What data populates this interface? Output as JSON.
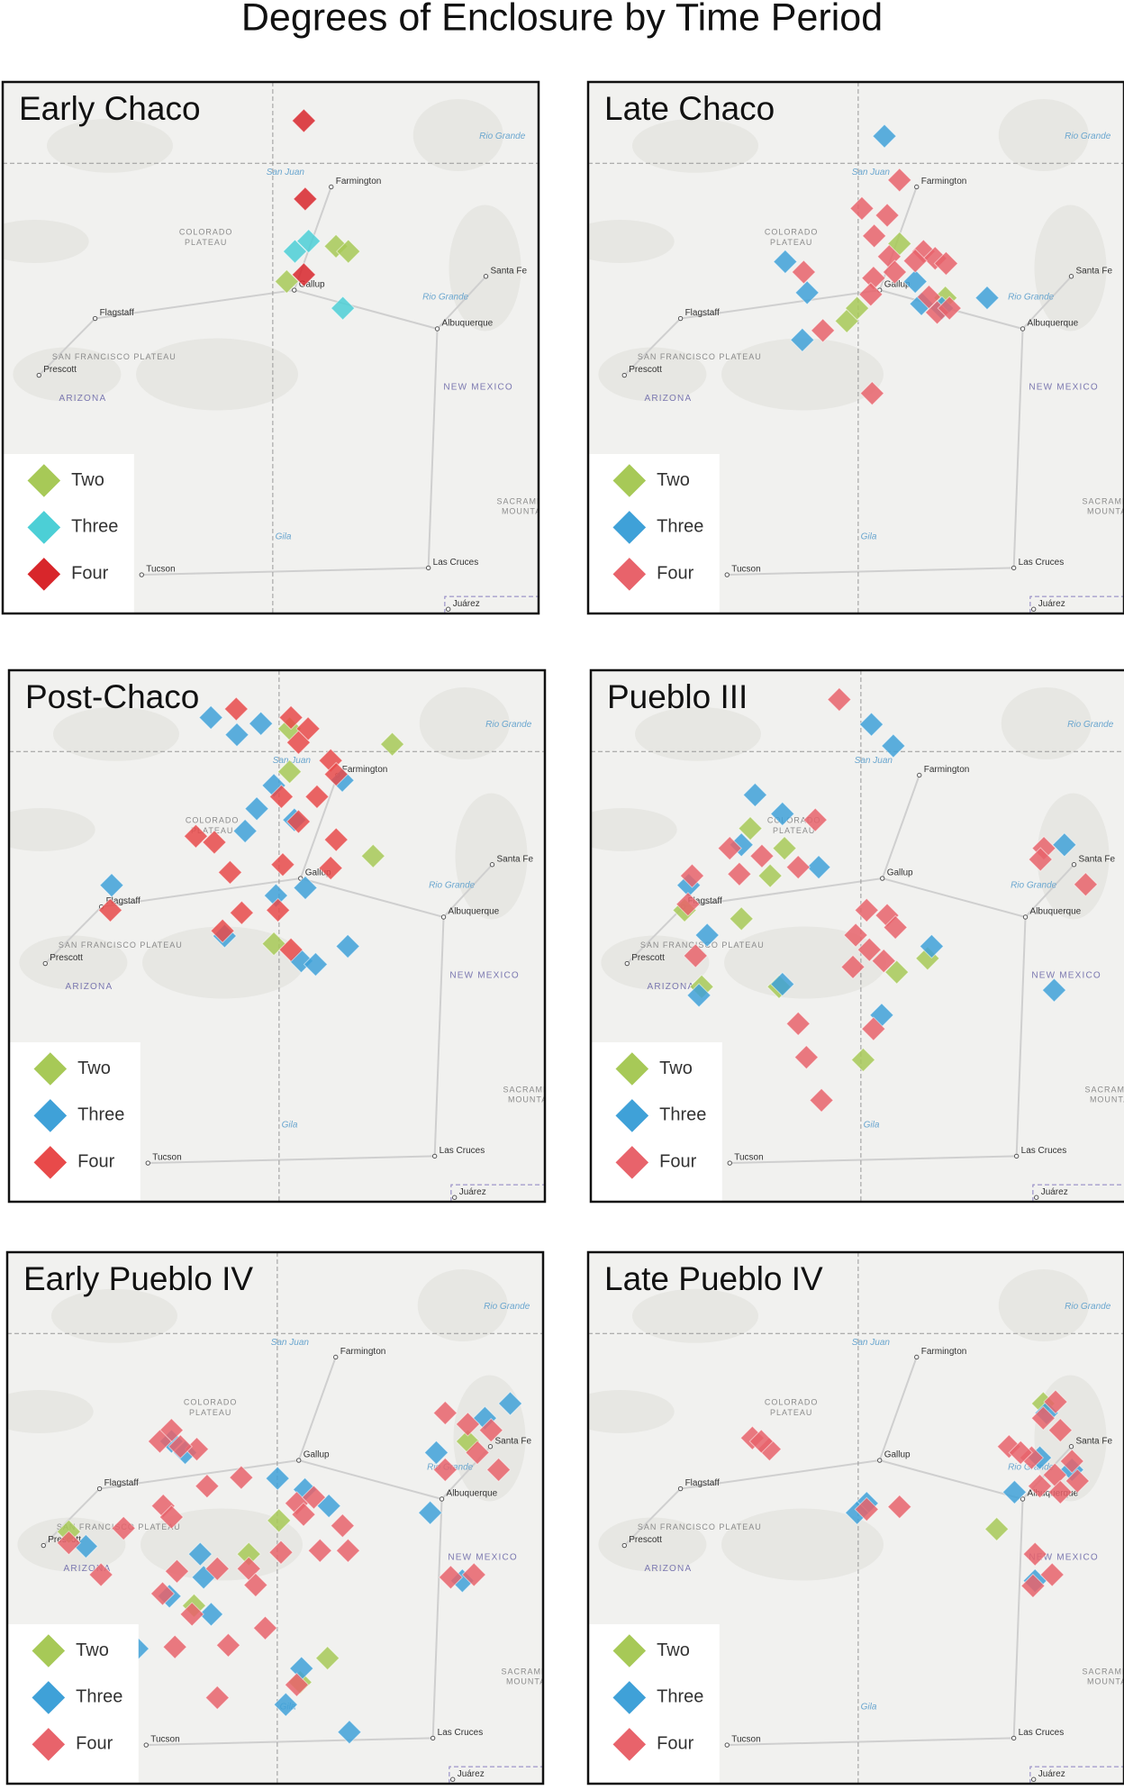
{
  "title": "Degrees of Enclosure by Time Period",
  "basemap": {
    "cities": [
      {
        "name": "Farmington",
        "lon": -108.2,
        "lat": 36.73
      },
      {
        "name": "Gallup",
        "lon": -108.74,
        "lat": 35.53
      },
      {
        "name": "Albuquerque",
        "lon": -106.65,
        "lat": 35.08
      },
      {
        "name": "Santa Fe",
        "lon": -105.94,
        "lat": 35.69
      },
      {
        "name": "Flagstaff",
        "lon": -111.65,
        "lat": 35.2
      },
      {
        "name": "Prescott",
        "lon": -112.47,
        "lat": 34.54
      },
      {
        "name": "Tucson",
        "lon": -110.97,
        "lat": 32.22
      },
      {
        "name": "Las Cruces",
        "lon": -106.78,
        "lat": 32.3
      },
      {
        "name": "Juárez",
        "lon": -106.49,
        "lat": 31.82
      }
    ],
    "regions": [
      {
        "text": "COLORADO",
        "lon": -110.03,
        "lat": 36.2
      },
      {
        "text": "PLATEAU",
        "lon": -110.03,
        "lat": 36.08
      },
      {
        "text": "SAN FRANCISCO PLATEAU",
        "lon": -111.37,
        "lat": 34.75
      },
      {
        "text": "SACRAMENTO",
        "lon": -105.3,
        "lat": 33.07
      },
      {
        "text": "MOUNTAINS",
        "lon": -105.3,
        "lat": 32.95
      }
    ],
    "states": [
      {
        "text": "ARIZONA",
        "lon": -111.83,
        "lat": 34.27
      },
      {
        "text": "NEW MEXICO",
        "lon": -106.05,
        "lat": 34.4
      }
    ],
    "rivers": [
      {
        "text": "San Juan",
        "lon": -108.87,
        "lat": 36.9
      },
      {
        "text": "Rio Grande",
        "lon": -106.53,
        "lat": 35.45
      },
      {
        "text": "Rio Grande",
        "lon": -105.7,
        "lat": 37.32
      },
      {
        "text": "Gila",
        "lon": -108.9,
        "lat": 32.66
      }
    ]
  },
  "chart_data": [
    {
      "type": "scatter",
      "title": "Early Chaco",
      "xlim": [
        -113,
        -105.17
      ],
      "ylim": [
        31.77,
        37.95
      ],
      "series": [
        {
          "name": "Two",
          "color": "#a7c957",
          "x": [
            -108.13,
            -107.95,
            -108.85
          ],
          "values": [
            36.04,
            35.98,
            35.63
          ]
        },
        {
          "name": "Three",
          "color": "#4ccfd6",
          "x": [
            -108.73,
            -108.53,
            -108.03
          ],
          "values": [
            35.98,
            36.1,
            35.32
          ]
        },
        {
          "name": "Four",
          "color": "#d8262b",
          "x": [
            -108.6,
            -108.58,
            -108.6
          ],
          "values": [
            37.5,
            36.59,
            35.71
          ]
        }
      ]
    },
    {
      "type": "scatter",
      "title": "Late Chaco",
      "xlim": [
        -113,
        -105.17
      ],
      "ylim": [
        31.77,
        37.95
      ],
      "series": [
        {
          "name": "Two",
          "color": "#a7c957",
          "x": [
            -108.45,
            -109.22,
            -109.07,
            -107.78
          ],
          "values": [
            36.07,
            35.17,
            35.32,
            35.44
          ]
        },
        {
          "name": "Three",
          "color": "#3fa1d8",
          "x": [
            -108.67,
            -110.12,
            -109.8,
            -109.87,
            -108.22,
            -108.13,
            -107.17,
            -107.83
          ],
          "values": [
            37.32,
            35.86,
            35.5,
            34.95,
            35.63,
            35.37,
            35.44,
            35.32
          ]
        },
        {
          "name": "Four",
          "color": "#e8636b",
          "x": [
            -108.45,
            -109,
            -108.63,
            -108.82,
            -109.85,
            -108.6,
            -108.83,
            -108.87,
            -109.57,
            -108.85,
            -108.1,
            -107.93,
            -107.77,
            -108.22,
            -108.02,
            -107.9,
            -107.72,
            -108.52
          ],
          "values": [
            36.81,
            36.48,
            36.4,
            36.16,
            35.74,
            35.92,
            35.67,
            35.48,
            35.06,
            34.33,
            35.98,
            35.9,
            35.84,
            35.87,
            35.45,
            35.27,
            35.32,
            35.74
          ]
        }
      ]
    },
    {
      "type": "scatter",
      "title": "Post-Chaco",
      "xlim": [
        -113,
        -105.17
      ],
      "ylim": [
        31.77,
        37.95
      ],
      "series": [
        {
          "name": "Two",
          "color": "#a7c957",
          "x": [
            -108.9,
            -107.4,
            -108.9,
            -107.68,
            -109.13
          ],
          "values": [
            37.27,
            37.09,
            36.77,
            35.79,
            34.77
          ]
        },
        {
          "name": "Three",
          "color": "#3fa1d8",
          "x": [
            -110.05,
            -109.67,
            -109.32,
            -109.13,
            -109.38,
            -109.55,
            -108.83,
            -111.5,
            -109.1,
            -108.67,
            -109.85,
            -108.73,
            -108.52,
            -108.05,
            -108.13
          ],
          "values": [
            37.4,
            37.2,
            37.33,
            36.61,
            36.34,
            36.08,
            36.21,
            35.45,
            35.33,
            35.42,
            34.86,
            34.57,
            34.53,
            34.74,
            36.67
          ]
        },
        {
          "name": "Four",
          "color": "#e84a4a",
          "x": [
            -109.68,
            -108.88,
            -108.63,
            -108.77,
            -108.3,
            -108.22,
            -110.27,
            -110,
            -109.02,
            -108.5,
            -108.77,
            -108.22,
            -109,
            -109.77,
            -108.3,
            -111.52,
            -109.6,
            -109.88,
            -109.07,
            -108.88
          ],
          "values": [
            37.5,
            37.4,
            37.27,
            37.11,
            36.9,
            36.74,
            36.02,
            35.95,
            36.48,
            36.48,
            36.19,
            35.98,
            35.69,
            35.6,
            35.65,
            35.16,
            35.13,
            34.92,
            35.16,
            34.7
          ]
        }
      ]
    },
    {
      "type": "scatter",
      "title": "Pueblo III",
      "xlim": [
        -113,
        -105.17
      ],
      "ylim": [
        31.77,
        37.95
      ],
      "series": [
        {
          "name": "Two",
          "color": "#a7c957",
          "x": [
            -110.67,
            -110.17,
            -110.38,
            -110.8,
            -111.63,
            -108.53,
            -108.08,
            -110.25,
            -109.02,
            -111.38
          ],
          "values": [
            36.11,
            35.88,
            35.56,
            35.06,
            35.16,
            34.44,
            34.6,
            34.27,
            33.42,
            34.27
          ]
        },
        {
          "name": "Three",
          "color": "#3fa1d8",
          "x": [
            -108.9,
            -108.58,
            -110.6,
            -110.2,
            -110.8,
            -109.67,
            -111.57,
            -111.3,
            -110.2,
            -111.42,
            -108.75,
            -108.02,
            -106.08,
            -106.23
          ],
          "values": [
            37.32,
            37.07,
            36.5,
            36.28,
            35.92,
            35.66,
            35.45,
            34.87,
            34.3,
            34.17,
            33.94,
            34.74,
            35.92,
            34.23
          ]
        },
        {
          "name": "Four",
          "color": "#e8636b",
          "x": [
            -109.37,
            -109.72,
            -110.97,
            -110.5,
            -109.97,
            -111.52,
            -111.58,
            -110.83,
            -108.97,
            -108.67,
            -108.55,
            -109.13,
            -108.93,
            -109.17,
            -108.72,
            -109.97,
            -109.85,
            -109.63,
            -108.87,
            -106.38,
            -106.43,
            -105.77,
            -111.47
          ],
          "values": [
            37.61,
            36.21,
            35.88,
            35.79,
            35.66,
            35.56,
            35.23,
            35.58,
            35.16,
            35.1,
            34.96,
            34.87,
            34.7,
            34.5,
            34.57,
            33.84,
            33.45,
            32.95,
            33.78,
            35.88,
            35.75,
            35.46,
            34.63
          ]
        }
      ]
    },
    {
      "type": "scatter",
      "title": "Early Pueblo IV",
      "xlim": [
        -113,
        -105.17
      ],
      "ylim": [
        31.77,
        37.95
      ],
      "series": [
        {
          "name": "Two",
          "color": "#a7c957",
          "x": [
            -112.1,
            -109.47,
            -109.03,
            -110.27,
            -108.32,
            -108.72,
            -106.27
          ],
          "values": [
            34.7,
            34.44,
            34.83,
            33.84,
            33.23,
            32.95,
            35.75
          ]
        },
        {
          "name": "Three",
          "color": "#3fa1d8",
          "x": [
            -110.6,
            -110.4,
            -109.05,
            -108.65,
            -108.3,
            -111.85,
            -110.18,
            -110.13,
            -110.63,
            -110.02,
            -111.1,
            -108.7,
            -108.93,
            -108,
            -106.82,
            -106.73,
            -106.02,
            -105.65,
            -106.35
          ],
          "values": [
            35.75,
            35.62,
            35.32,
            35.19,
            35.0,
            34.53,
            34.44,
            34.17,
            33.95,
            33.74,
            33.34,
            33.11,
            32.69,
            32.37,
            34.92,
            35.62,
            36.02,
            36.19,
            34.13
          ]
        },
        {
          "name": "Four",
          "color": "#e8636b",
          "x": [
            -110.6,
            -110.77,
            -110.23,
            -110.47,
            -110.08,
            -109.58,
            -110.72,
            -110.6,
            -111.3,
            -112.1,
            -111.63,
            -110.52,
            -110.73,
            -109.93,
            -109.47,
            -109.37,
            -109,
            -110.3,
            -109.77,
            -109.23,
            -110.55,
            -109.93,
            -108.77,
            -108.52,
            -108.67,
            -108.1,
            -108.43,
            -108.02,
            -108.77,
            -106.6,
            -106.27,
            -105.93,
            -106.13,
            -105.82,
            -106.6,
            -106.52,
            -106.18
          ],
          "values": [
            35.88,
            35.75,
            35.66,
            35.69,
            35.23,
            35.33,
            35.0,
            34.87,
            34.74,
            34.57,
            34.2,
            34.24,
            33.98,
            34.27,
            34.27,
            34.08,
            34.46,
            33.74,
            33.38,
            33.58,
            33.36,
            32.77,
            35.03,
            35.1,
            34.9,
            34.77,
            34.48,
            34.48,
            32.92,
            36.08,
            35.95,
            35.88,
            35.62,
            35.42,
            35.42,
            34.17,
            34.2
          ]
        }
      ]
    },
    {
      "type": "scatter",
      "title": "Late Pueblo IV",
      "xlim": [
        -113,
        -105.17
      ],
      "ylim": [
        31.77,
        37.95
      ],
      "series": [
        {
          "name": "Two",
          "color": "#a7c957",
          "x": [
            -107.03,
            -106.35
          ],
          "values": [
            34.73,
            36.19
          ]
        },
        {
          "name": "Three",
          "color": "#3fa1d8",
          "x": [
            -106.3,
            -106.4,
            -106.77,
            -108.93,
            -109.07,
            -106.47,
            -105.93
          ],
          "values": [
            36.08,
            35.56,
            35.16,
            35.03,
            34.92,
            34.13,
            35.42
          ]
        },
        {
          "name": "Four",
          "color": "#e8636b",
          "x": [
            -110.6,
            -110.35,
            -110.47,
            -108.93,
            -108.45,
            -106.17,
            -106.35,
            -106.1,
            -106.85,
            -106.52,
            -105.93,
            -106.18,
            -105.85,
            -106.4,
            -106.1,
            -106.68,
            -106.22,
            -106.5,
            -106.47
          ],
          "values": [
            35.79,
            35.66,
            35.75,
            34.96,
            34.99,
            36.21,
            36.02,
            35.88,
            35.69,
            35.56,
            35.52,
            35.36,
            35.29,
            35.23,
            35.16,
            35.62,
            34.2,
            34.07,
            34.44
          ]
        }
      ]
    }
  ]
}
